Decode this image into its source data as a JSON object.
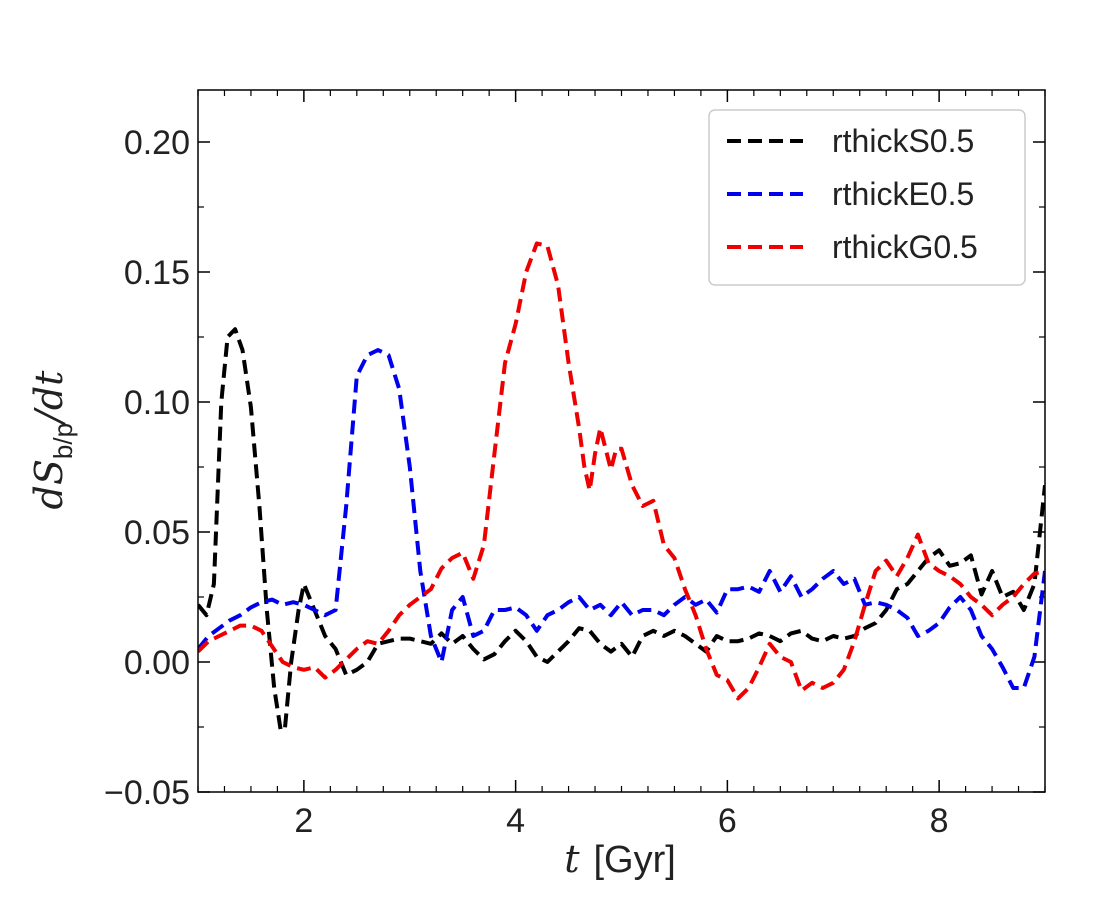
{
  "chart_data": {
    "type": "line",
    "xlabel_var": "t",
    "xlabel_unit": "[Gyr]",
    "ylabel": "dS_b/p/dt",
    "ylabel_var": "dS",
    "ylabel_sub": "b/p",
    "ylabel_tail": "/dt",
    "xlim": [
      1.0,
      9.0
    ],
    "ylim": [
      -0.05,
      0.22
    ],
    "x_ticks": [
      2,
      4,
      6,
      8
    ],
    "x_tick_labels": [
      "2",
      "4",
      "6",
      "8"
    ],
    "y_ticks": [
      -0.05,
      0.0,
      0.05,
      0.1,
      0.15,
      0.2
    ],
    "y_tick_labels": [
      "−0.05",
      "0.00",
      "0.05",
      "0.10",
      "0.15",
      "0.20"
    ],
    "legend_position": "top-right",
    "series": [
      {
        "name": "rthickS0.5",
        "color": "#000000",
        "x": [
          1.0,
          1.08,
          1.15,
          1.22,
          1.28,
          1.35,
          1.42,
          1.5,
          1.58,
          1.65,
          1.72,
          1.78,
          1.82,
          1.88,
          1.95,
          2.0,
          2.1,
          2.2,
          2.3,
          2.4,
          2.5,
          2.6,
          2.7,
          2.8,
          2.9,
          3.0,
          3.1,
          3.2,
          3.3,
          3.4,
          3.5,
          3.6,
          3.7,
          3.8,
          3.9,
          4.0,
          4.1,
          4.2,
          4.3,
          4.4,
          4.5,
          4.6,
          4.7,
          4.8,
          4.9,
          5.0,
          5.1,
          5.2,
          5.3,
          5.4,
          5.5,
          5.6,
          5.7,
          5.8,
          5.9,
          6.0,
          6.1,
          6.2,
          6.3,
          6.4,
          6.5,
          6.6,
          6.7,
          6.8,
          6.9,
          7.0,
          7.1,
          7.2,
          7.3,
          7.4,
          7.5,
          7.6,
          7.7,
          7.8,
          7.9,
          8.0,
          8.1,
          8.2,
          8.3,
          8.4,
          8.5,
          8.6,
          8.7,
          8.8,
          8.9,
          9.0
        ],
        "y": [
          0.022,
          0.018,
          0.03,
          0.1,
          0.125,
          0.128,
          0.12,
          0.098,
          0.06,
          0.02,
          -0.01,
          -0.026,
          -0.026,
          0.0,
          0.02,
          0.03,
          0.02,
          0.01,
          0.005,
          -0.005,
          -0.003,
          0.0,
          0.007,
          0.008,
          0.009,
          0.009,
          0.008,
          0.007,
          0.011,
          0.007,
          0.01,
          0.005,
          0.001,
          0.003,
          0.008,
          0.012,
          0.008,
          0.002,
          0.0,
          0.004,
          0.008,
          0.013,
          0.012,
          0.007,
          0.004,
          0.007,
          0.002,
          0.01,
          0.012,
          0.01,
          0.012,
          0.01,
          0.007,
          0.004,
          0.01,
          0.008,
          0.008,
          0.009,
          0.011,
          0.01,
          0.008,
          0.011,
          0.012,
          0.009,
          0.008,
          0.01,
          0.009,
          0.01,
          0.013,
          0.015,
          0.02,
          0.028,
          0.03,
          0.035,
          0.04,
          0.043,
          0.037,
          0.038,
          0.041,
          0.026,
          0.035,
          0.025,
          0.027,
          0.02,
          0.03,
          0.068
        ]
      },
      {
        "name": "rthickE0.5",
        "color": "#0000ee",
        "x": [
          1.0,
          1.1,
          1.2,
          1.3,
          1.4,
          1.5,
          1.6,
          1.7,
          1.8,
          1.9,
          2.0,
          2.1,
          2.2,
          2.3,
          2.4,
          2.5,
          2.6,
          2.7,
          2.8,
          2.9,
          3.0,
          3.1,
          3.2,
          3.3,
          3.4,
          3.5,
          3.6,
          3.7,
          3.8,
          3.9,
          4.0,
          4.1,
          4.2,
          4.3,
          4.4,
          4.5,
          4.6,
          4.7,
          4.8,
          4.9,
          5.0,
          5.1,
          5.2,
          5.3,
          5.4,
          5.5,
          5.6,
          5.7,
          5.8,
          5.9,
          6.0,
          6.1,
          6.2,
          6.3,
          6.4,
          6.5,
          6.6,
          6.7,
          6.8,
          6.9,
          7.0,
          7.1,
          7.2,
          7.3,
          7.4,
          7.5,
          7.6,
          7.7,
          7.8,
          7.9,
          8.0,
          8.1,
          8.2,
          8.3,
          8.4,
          8.5,
          8.6,
          8.7,
          8.8,
          8.9,
          9.0
        ],
        "y": [
          0.005,
          0.01,
          0.013,
          0.016,
          0.018,
          0.021,
          0.023,
          0.024,
          0.022,
          0.023,
          0.022,
          0.02,
          0.018,
          0.02,
          0.06,
          0.11,
          0.118,
          0.12,
          0.118,
          0.105,
          0.075,
          0.035,
          0.01,
          0.0,
          0.02,
          0.025,
          0.01,
          0.012,
          0.02,
          0.02,
          0.021,
          0.018,
          0.012,
          0.018,
          0.02,
          0.023,
          0.025,
          0.02,
          0.022,
          0.018,
          0.023,
          0.018,
          0.02,
          0.02,
          0.018,
          0.022,
          0.025,
          0.022,
          0.024,
          0.019,
          0.028,
          0.028,
          0.029,
          0.027,
          0.035,
          0.027,
          0.033,
          0.025,
          0.028,
          0.032,
          0.035,
          0.03,
          0.032,
          0.022,
          0.023,
          0.022,
          0.02,
          0.017,
          0.01,
          0.012,
          0.015,
          0.021,
          0.025,
          0.02,
          0.01,
          0.005,
          -0.002,
          -0.01,
          -0.01,
          0.002,
          0.035
        ]
      },
      {
        "name": "rthickG0.5",
        "color": "#ee0000",
        "x": [
          1.0,
          1.1,
          1.2,
          1.3,
          1.4,
          1.5,
          1.6,
          1.7,
          1.8,
          1.9,
          2.0,
          2.1,
          2.2,
          2.3,
          2.4,
          2.5,
          2.6,
          2.7,
          2.8,
          2.9,
          3.0,
          3.1,
          3.2,
          3.3,
          3.4,
          3.5,
          3.6,
          3.7,
          3.8,
          3.9,
          4.0,
          4.1,
          4.2,
          4.3,
          4.4,
          4.5,
          4.6,
          4.65,
          4.7,
          4.75,
          4.8,
          4.85,
          4.9,
          4.95,
          5.0,
          5.05,
          5.1,
          5.2,
          5.3,
          5.4,
          5.5,
          5.6,
          5.7,
          5.8,
          5.9,
          6.0,
          6.1,
          6.2,
          6.3,
          6.4,
          6.5,
          6.6,
          6.7,
          6.8,
          6.9,
          7.0,
          7.1,
          7.2,
          7.3,
          7.4,
          7.5,
          7.6,
          7.7,
          7.8,
          7.9,
          8.0,
          8.1,
          8.2,
          8.3,
          8.4,
          8.5,
          8.6,
          8.7,
          8.8,
          8.9,
          9.0
        ],
        "y": [
          0.004,
          0.008,
          0.01,
          0.012,
          0.014,
          0.014,
          0.012,
          0.006,
          0.0,
          -0.002,
          -0.003,
          -0.002,
          -0.006,
          -0.003,
          0.001,
          0.005,
          0.008,
          0.007,
          0.012,
          0.018,
          0.022,
          0.025,
          0.028,
          0.036,
          0.04,
          0.042,
          0.032,
          0.045,
          0.08,
          0.115,
          0.13,
          0.15,
          0.161,
          0.16,
          0.145,
          0.115,
          0.09,
          0.075,
          0.066,
          0.08,
          0.09,
          0.082,
          0.074,
          0.082,
          0.082,
          0.075,
          0.068,
          0.06,
          0.062,
          0.045,
          0.04,
          0.028,
          0.018,
          0.005,
          -0.005,
          -0.007,
          -0.014,
          -0.01,
          -0.002,
          0.007,
          0.002,
          0.0,
          -0.011,
          -0.008,
          -0.01,
          -0.008,
          -0.003,
          0.008,
          0.022,
          0.035,
          0.039,
          0.033,
          0.04,
          0.049,
          0.038,
          0.035,
          0.033,
          0.03,
          0.025,
          0.022,
          0.018,
          0.022,
          0.025,
          0.03,
          0.034,
          0.035
        ]
      }
    ]
  }
}
